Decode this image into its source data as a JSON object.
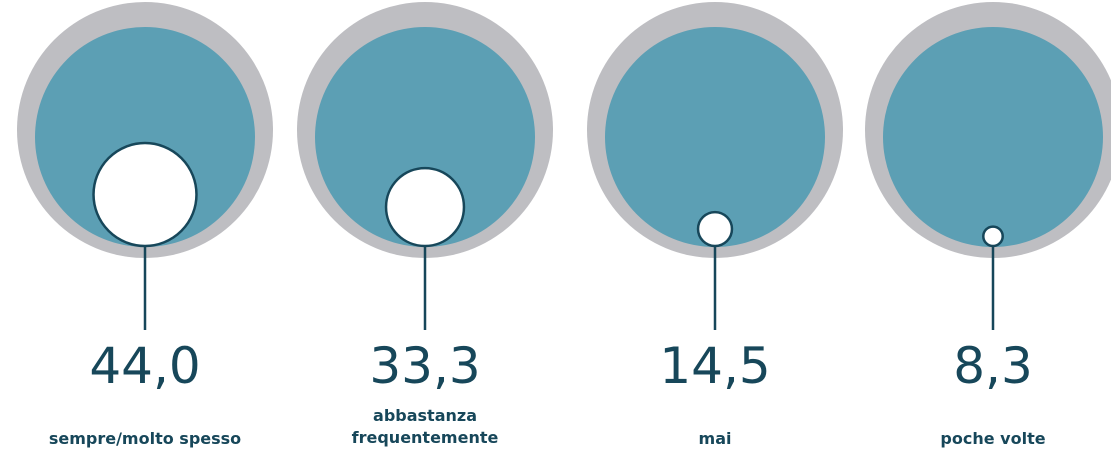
{
  "chart_data": {
    "type": "bubble",
    "categories": [
      "sempre/molto spesso",
      "abbastanza\nfrequentemente",
      "mai",
      "poche volte"
    ],
    "values": [
      44.0,
      33.3,
      14.5,
      8.3
    ],
    "value_labels": [
      "44,0",
      "33,3",
      "14,5",
      "8,3"
    ],
    "colors": {
      "ring": "#bebec2",
      "disc": "#5c9fb4",
      "bubble": "#ffffff",
      "ink": "#17475a"
    }
  }
}
